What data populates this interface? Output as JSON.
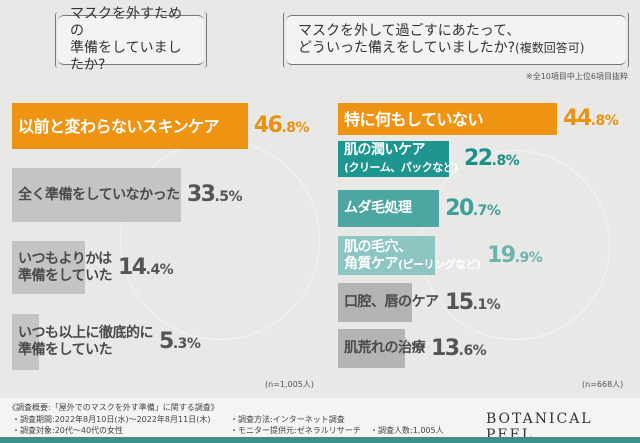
{
  "chart_data": [
    {
      "type": "bar",
      "orientation": "horizontal",
      "title": "マスクを外すための\n準備をしていましたか?",
      "categories": [
        "以前と変わらないスキンケア",
        "全く準備をしていなかった",
        "いつもよりかは\n準備をしていた",
        "いつも以上に徹底的に\n準備をしていた"
      ],
      "values": [
        46.8,
        33.5,
        14.4,
        5.3
      ],
      "value_labels": [
        "46.8%",
        "33.5%",
        "14.4%",
        "5.3%"
      ],
      "colors": [
        "#ef9313",
        "#c4c4c2",
        "#c4c4c2",
        "#c4c4c2"
      ],
      "label_colors": [
        "#ffffff",
        "#4a4a4a",
        "#4a4a4a",
        "#4a4a4a"
      ],
      "value_colors": [
        "#e8920f",
        "#555555",
        "#555555",
        "#555555"
      ],
      "sample": "(n=1,005人)"
    },
    {
      "type": "bar",
      "orientation": "horizontal",
      "title": "マスクを外して過ごすにあたって、\nどういった備えをしていましたか?",
      "title_suffix": "(複数回答可)",
      "note": "※全10項目中上位6項目抜粋",
      "categories": [
        "特に何もしていない",
        "肌の潤いケア\n(クリーム、パックなど)",
        "ムダ毛処理",
        "肌の毛穴、\n角質ケア(ピーリングなど)",
        "口腔、唇のケア",
        "肌荒れの治療"
      ],
      "values": [
        44.8,
        22.8,
        20.7,
        19.9,
        15.1,
        13.6
      ],
      "value_labels": [
        "44.8%",
        "22.8%",
        "20.7%",
        "19.9%",
        "15.1%",
        "13.6%"
      ],
      "colors": [
        "#ef9313",
        "#1f9590",
        "#4da6a1",
        "#8cc5c1",
        "#b4b4b2",
        "#b4b4b2"
      ],
      "label_colors": [
        "#ffffff",
        "#ffffff",
        "#ffffff",
        "#ffffff",
        "#4a4a4a",
        "#4a4a4a"
      ],
      "value_colors": [
        "#e8920f",
        "#1f8f8a",
        "#3f9e99",
        "#6cb3ae",
        "#555555",
        "#555555"
      ],
      "sample": "(n=668人)"
    }
  ],
  "footer": {
    "heading": "《調査概要:「屋外でのマスクを外す準備」に関する調査》",
    "period": "・調査期間:2022年8月10日(水)〜2022年8月11日(木)",
    "target": "・調査対象:20代〜40代の女性",
    "method": "・調査方法:インターネット調査",
    "provider": "・モニター提供元:ゼネラルリサーチ",
    "count": "・調査人数:1,005人",
    "brand": "BOTANICAL PEEL"
  }
}
